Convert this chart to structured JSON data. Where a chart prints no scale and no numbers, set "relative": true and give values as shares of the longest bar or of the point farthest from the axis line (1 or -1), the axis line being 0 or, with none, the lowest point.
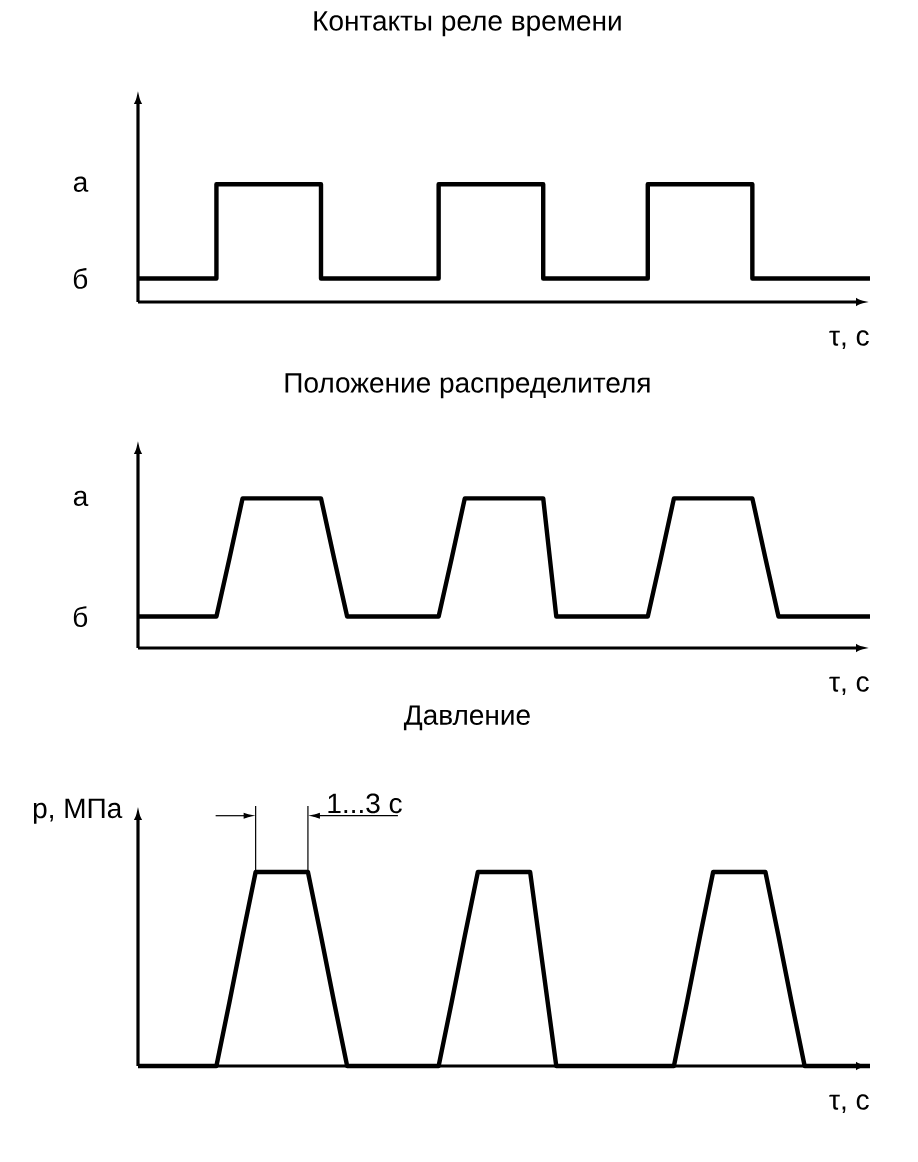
{
  "chart_data": [
    {
      "type": "step",
      "title": "Контакты реле времени",
      "xlabel": "τ, с",
      "relative": true,
      "tick_labels": false,
      "marker": "none",
      "line_style": "solid",
      "annotations": [
        "а",
        "б"
      ],
      "categories": [
        null,
        null,
        null,
        null,
        null,
        null,
        null,
        null,
        null,
        null,
        null,
        null,
        null,
        null,
        null,
        null,
        null,
        null,
        null,
        null,
        null,
        null,
        null,
        null,
        null,
        null,
        null,
        null,
        null,
        null,
        null,
        null,
        null,
        null,
        null,
        null,
        null,
        null,
        null,
        null,
        null,
        null,
        null,
        null,
        null,
        null,
        null,
        null,
        null,
        null,
        null,
        null,
        null,
        null,
        null,
        null,
        null
      ],
      "series": [
        {
          "color": "#000000",
          "values": [
            0.2,
            0.2,
            0.2,
            0.2,
            0.2,
            0.2,
            1,
            1,
            1,
            1,
            1,
            1,
            1,
            1,
            0.2,
            0.2,
            0.2,
            0.2,
            0.2,
            0.2,
            0.2,
            0.2,
            0.2,
            1,
            1,
            1,
            1,
            1,
            1,
            1,
            1,
            0.2,
            0.2,
            0.2,
            0.2,
            0.2,
            0.2,
            0.2,
            0.2,
            1,
            1,
            1,
            1,
            1,
            1,
            1,
            1,
            0.2,
            0.2,
            0.2,
            0.2,
            0.2,
            0.2,
            0.2,
            0.2,
            0.2,
            0.2
          ]
        }
      ]
    },
    {
      "type": "line",
      "title": "Положение распределителя",
      "xlabel": "τ, с",
      "relative": true,
      "tick_labels": false,
      "marker": "none",
      "line_style": "solid",
      "annotations": [
        "а",
        "б"
      ],
      "categories": [
        null,
        null,
        null,
        null,
        null,
        null,
        null,
        null,
        null,
        null,
        null,
        null,
        null,
        null,
        null,
        null,
        null,
        null,
        null,
        null,
        null,
        null,
        null,
        null,
        null,
        null,
        null,
        null,
        null,
        null,
        null,
        null,
        null,
        null,
        null,
        null,
        null,
        null,
        null,
        null,
        null,
        null,
        null,
        null,
        null,
        null,
        null,
        null,
        null,
        null,
        null,
        null,
        null,
        null,
        null,
        null,
        null
      ],
      "series": [
        {
          "color": "#000000",
          "values": [
            0.21,
            0.21,
            0.21,
            0.21,
            0.21,
            0.21,
            0.21,
            0.6,
            1,
            1,
            1,
            1,
            1,
            1,
            1,
            0.6,
            0.21,
            0.21,
            0.21,
            0.21,
            0.21,
            0.21,
            0.21,
            0.21,
            0.6,
            1,
            1,
            1,
            1,
            1,
            1,
            1,
            0.21,
            0.21,
            0.21,
            0.21,
            0.21,
            0.21,
            0.21,
            0.21,
            0.6,
            1,
            1,
            1,
            1,
            1,
            1,
            1,
            0.6,
            0.21,
            0.21,
            0.21,
            0.21,
            0.21,
            0.21,
            0.21,
            0.21
          ]
        }
      ]
    },
    {
      "type": "line",
      "title": "Давление",
      "xlabel": "τ, с",
      "ylabel": "p, МПа",
      "relative": true,
      "tick_labels": false,
      "marker": "none",
      "line_style": "solid",
      "annotations": [
        "1...3 с"
      ],
      "categories": [
        null,
        null,
        null,
        null,
        null,
        null,
        null,
        null,
        null,
        null,
        null,
        null,
        null,
        null,
        null,
        null,
        null,
        null,
        null,
        null,
        null,
        null,
        null,
        null,
        null,
        null,
        null,
        null,
        null,
        null,
        null,
        null,
        null,
        null,
        null,
        null,
        null,
        null,
        null,
        null,
        null,
        null,
        null,
        null,
        null,
        null,
        null,
        null,
        null,
        null,
        null,
        null,
        null,
        null,
        null,
        null,
        null
      ],
      "series": [
        {
          "color": "#000000",
          "values": [
            0,
            0,
            0,
            0,
            0,
            0,
            0,
            0.33,
            0.67,
            1,
            1,
            1,
            1,
            1,
            0.67,
            0.33,
            0,
            0,
            0,
            0,
            0,
            0,
            0,
            0,
            0.33,
            0.67,
            1,
            1,
            1,
            1,
            1,
            0.5,
            0,
            0,
            0,
            0,
            0,
            0,
            0,
            0,
            0,
            0,
            0.33,
            0.67,
            1,
            1,
            1,
            1,
            1,
            0.67,
            0.33,
            0,
            0,
            0,
            0,
            0,
            0
          ]
        }
      ]
    }
  ]
}
